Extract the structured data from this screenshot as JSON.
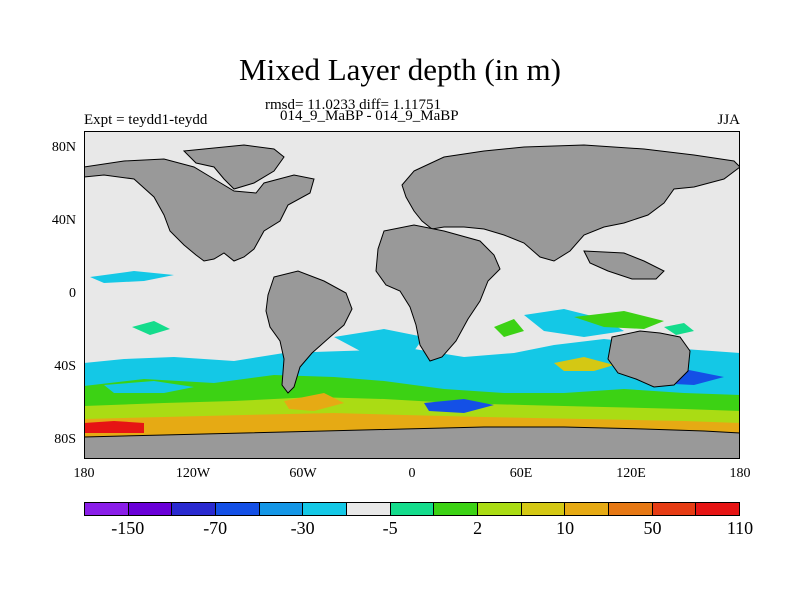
{
  "title": "Mixed Layer depth (in m)",
  "stats_line": "rmsd= 11.0233 diff= 1.11751",
  "comparison": "014_9_MaBP - 014_9_MaBP",
  "left_label": "Expt = teydd1-teydd",
  "season": "JJA",
  "y_ticks": [
    "80N",
    "40N",
    "0",
    "40S",
    "80S"
  ],
  "x_ticks": [
    "180",
    "120W",
    "60W",
    "0",
    "60E",
    "120E",
    "180"
  ],
  "colorbar": {
    "colors": [
      "#8a1ee8",
      "#6a00d8",
      "#2a2ad0",
      "#1450e6",
      "#1496e6",
      "#14c8e6",
      "#e8e8e8",
      "#14dc8c",
      "#3cd214",
      "#aadc14",
      "#d4c814",
      "#e6aa14",
      "#e67814",
      "#e63c14",
      "#e61414"
    ],
    "labels": [
      "-150",
      "-70",
      "-30",
      "-5",
      "2",
      "10",
      "50",
      "110"
    ]
  },
  "colors": {
    "ocean": "#e8e8e8",
    "land": "#999999",
    "coast": "#000000"
  }
}
